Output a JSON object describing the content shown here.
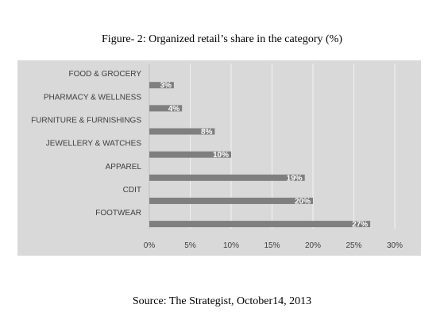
{
  "figure": {
    "title": "Figure- 2: Organized retail’s share in the category (%)",
    "source": "Source: The Strategist, October14, 2013"
  },
  "chart_data": {
    "type": "bar",
    "orientation": "horizontal",
    "categories": [
      "FOOD & GROCERY",
      "PHARMACY & WELLNESS",
      "FURNITURE & FURNISHINGS",
      "JEWELLERY & WATCHES",
      "APPAREL",
      "CDIT",
      "FOOTWEAR"
    ],
    "values": [
      3,
      4,
      8,
      10,
      19,
      20,
      27
    ],
    "data_labels": [
      "3%",
      "4%",
      "8%",
      "10%",
      "19%",
      "20%",
      "27%"
    ],
    "xticks": [
      "0%",
      "5%",
      "10%",
      "15%",
      "20%",
      "25%",
      "30%"
    ],
    "xlim": [
      0,
      30
    ],
    "grid": true,
    "legend": "none",
    "colors": {
      "panel": "#d9d9d9",
      "bar": "#7f7f7f",
      "gridline": "#f2f2f2",
      "text": "#404040",
      "data_label": "#ffffff"
    }
  }
}
